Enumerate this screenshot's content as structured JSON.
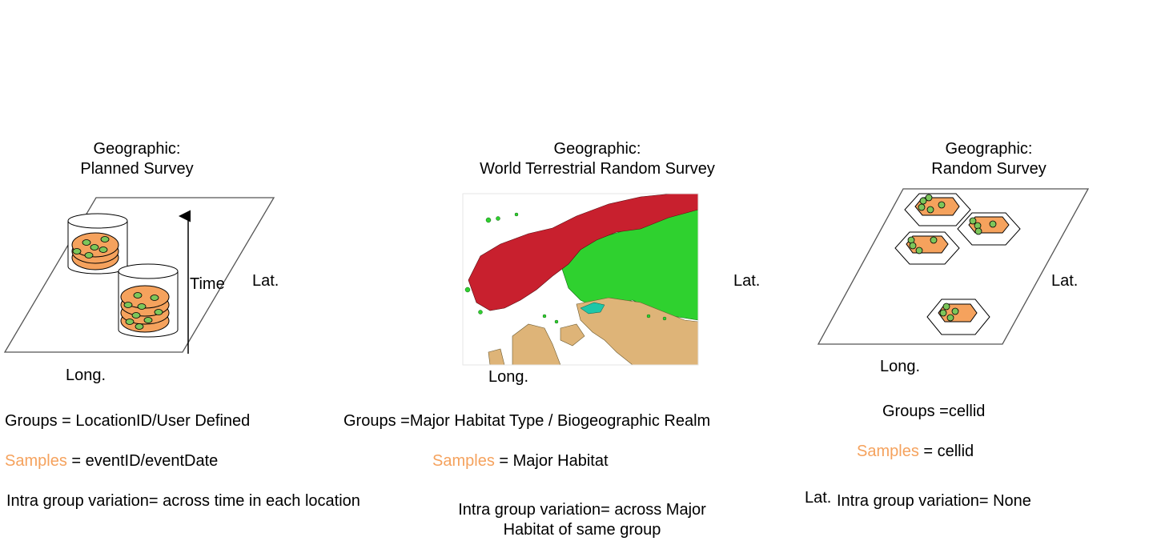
{
  "panels": [
    {
      "title_line1": "Geographic:",
      "title_line2": "Planned Survey",
      "axis_time": "Time",
      "axis_lat": "Lat.",
      "axis_long": "Long.",
      "groups": "Groups = LocationID/User Defined",
      "samples_label": "Samples",
      "samples_value": " = eventID/eventDate",
      "intra_line1": "Intra group variation= across time in each location",
      "intra_line2": ""
    },
    {
      "title_line1": "Geographic:",
      "title_line2": "World Terrestrial Random Survey",
      "axis_lat": "Lat.",
      "axis_long": "Long.",
      "groups": "Groups =Major Habitat Type / Biogeographic Realm",
      "samples_label": "Samples",
      "samples_value": " = Major Habitat",
      "intra_line1": "Intra group variation= across Major",
      "intra_line2": "Habitat of same group"
    },
    {
      "title_line1": "Geographic:",
      "title_line2": "Random Survey",
      "axis_lat": "Lat.",
      "axis_long": "Long.",
      "groups": "Groups =cellid",
      "samples_label": "Samples",
      "samples_value": " = cellid",
      "extra_lat": "Lat.",
      "intra_line1": "Intra group variation= None",
      "intra_line2": ""
    }
  ],
  "colors": {
    "sample_orange": "#f5a25d",
    "dot_green": "#7cc65a",
    "map_red": "#c8202e",
    "map_green": "#2fd12f",
    "map_tan": "#deb478",
    "map_teal": "#1fc7a8"
  },
  "icons": [
    "cylinder-icon",
    "hexagon-icon",
    "arrow-icon",
    "map-image"
  ]
}
